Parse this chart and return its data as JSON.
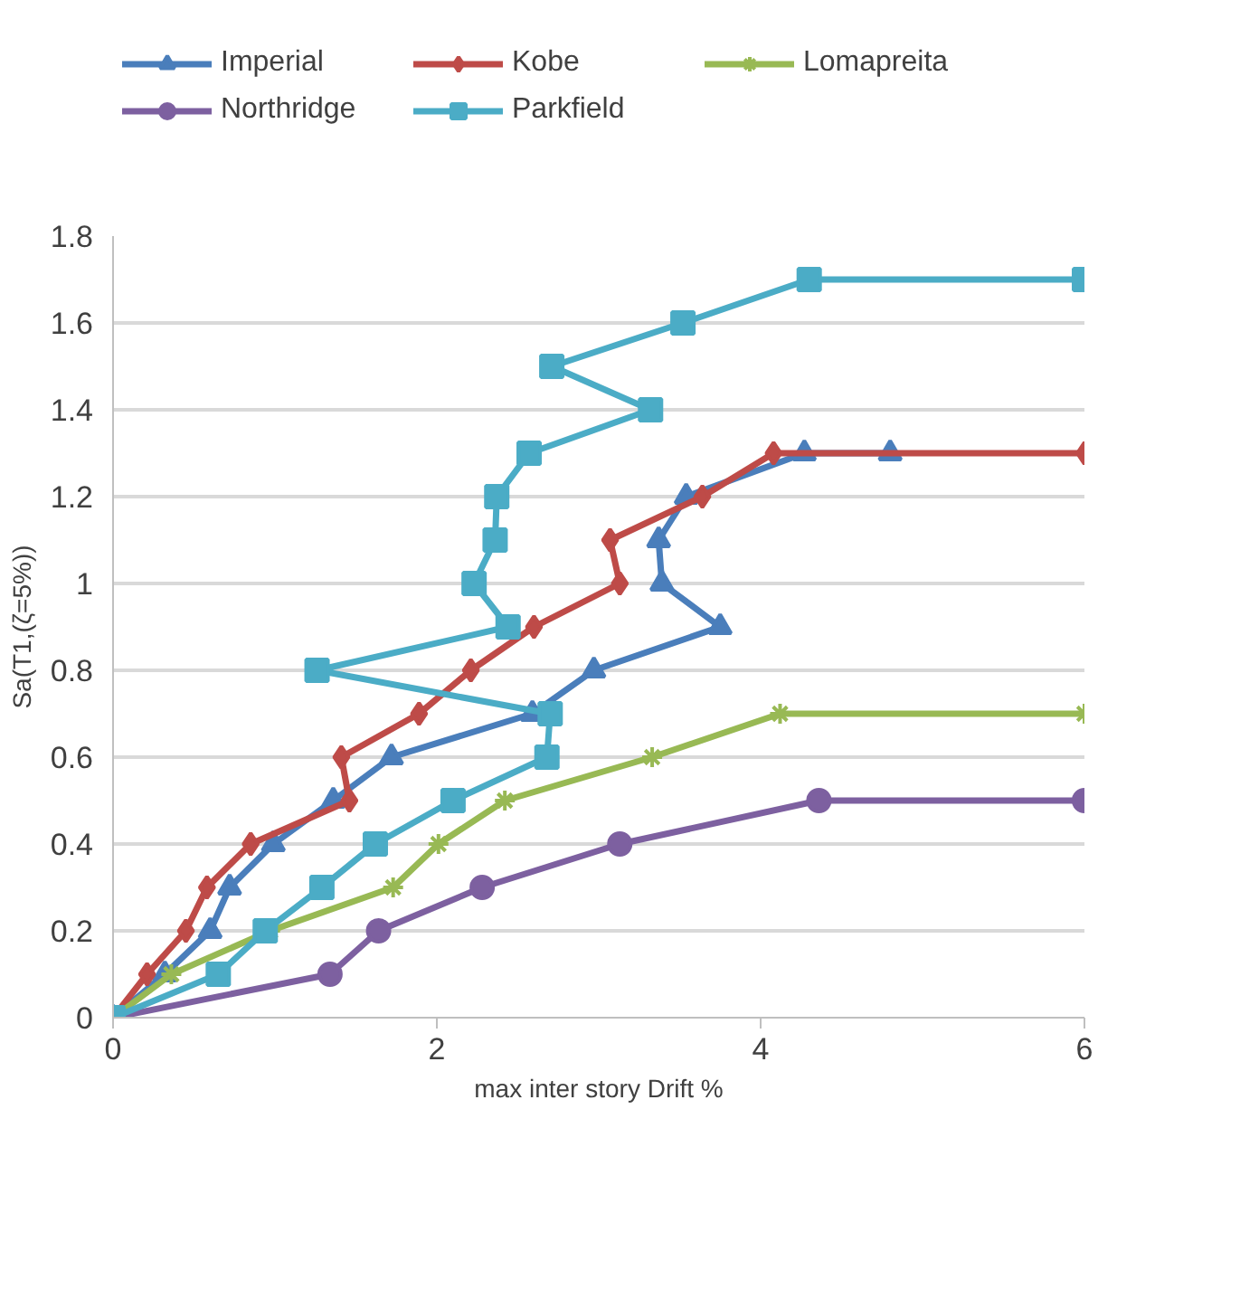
{
  "chart_data": {
    "type": "line",
    "xlabel": "max inter story Drift %",
    "ylabel": "Sa(T1,(ζ=5%))",
    "xlim": [
      0,
      6
    ],
    "xticks": [
      0,
      2,
      4,
      6
    ],
    "ylim": [
      0,
      1.8
    ],
    "yticks": [
      0,
      {
        "value": 0.2,
        "label": "0.2"
      },
      {
        "value": 0.4,
        "label": "0.4"
      },
      {
        "value": 0.6,
        "label": "0.6"
      },
      {
        "value": 0.8,
        "label": "0.8"
      },
      1,
      {
        "value": 1.2,
        "label": "1.2"
      },
      {
        "value": 1.4,
        "label": "1.4"
      },
      {
        "value": 1.6,
        "label": "1.6"
      },
      {
        "value": 1.8,
        "label": "1.8"
      }
    ],
    "grid": "y",
    "legend": "top",
    "series": [
      {
        "name": "Imperial",
        "color": "#4a7ebb",
        "marker": "triangle",
        "x": [
          0,
          0.32,
          0.6,
          0.72,
          0.99,
          1.36,
          1.72,
          2.59,
          2.97,
          3.75,
          3.39,
          3.37,
          3.54,
          4.27,
          4.8
        ],
        "values": [
          0,
          0.1,
          0.2,
          0.3,
          0.4,
          0.5,
          0.6,
          0.7,
          0.8,
          0.9,
          1.0,
          1.1,
          1.2,
          1.3,
          1.3
        ]
      },
      {
        "name": "Kobe",
        "color": "#be4b48",
        "marker": "diamond",
        "x": [
          0,
          0.21,
          0.45,
          0.58,
          0.85,
          1.46,
          1.41,
          1.89,
          2.21,
          2.6,
          3.13,
          3.07,
          3.64,
          4.08,
          6.0
        ],
        "values": [
          0,
          0.1,
          0.2,
          0.3,
          0.4,
          0.5,
          0.6,
          0.7,
          0.8,
          0.9,
          1.0,
          1.1,
          1.2,
          1.3,
          1.3
        ]
      },
      {
        "name": "Lomapreita",
        "color": "#98b954",
        "marker": "cross",
        "x": [
          0,
          0.36,
          0.97,
          1.73,
          2.01,
          2.42,
          3.33,
          4.12,
          6.0
        ],
        "values": [
          0,
          0.1,
          0.2,
          0.3,
          0.4,
          0.5,
          0.6,
          0.7,
          0.7
        ]
      },
      {
        "name": "Northridge",
        "color": "#7d60a0",
        "marker": "circle",
        "x": [
          0,
          1.34,
          1.64,
          2.28,
          3.13,
          4.36,
          6.0
        ],
        "values": [
          0,
          0.1,
          0.2,
          0.3,
          0.4,
          0.5,
          0.5
        ]
      },
      {
        "name": "Parkfield",
        "color": "#4bacc6",
        "marker": "square",
        "x": [
          0,
          0.65,
          0.94,
          1.29,
          1.62,
          2.1,
          2.68,
          2.7,
          1.26,
          2.44,
          2.23,
          2.36,
          2.37,
          2.57,
          3.32,
          2.71,
          3.52,
          4.3,
          6.0
        ],
        "values": [
          0,
          0.1,
          0.2,
          0.3,
          0.4,
          0.5,
          0.6,
          0.7,
          0.8,
          0.9,
          1.0,
          1.1,
          1.2,
          1.3,
          1.4,
          1.5,
          1.6,
          1.7,
          1.7
        ]
      }
    ]
  }
}
